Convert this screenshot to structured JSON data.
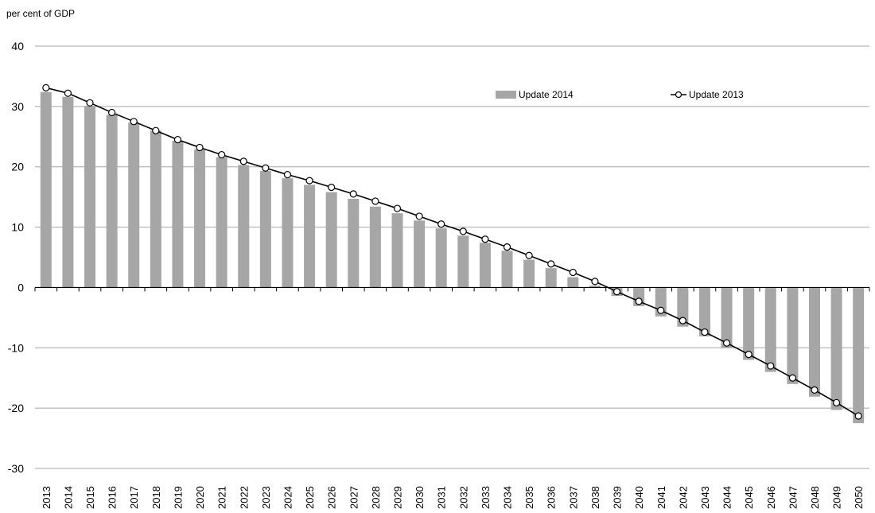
{
  "chart_data": {
    "type": "bar",
    "title": "",
    "ylabel": "per cent of GDP",
    "xlabel": "",
    "ylim": [
      -30,
      40
    ],
    "yticks": [
      40,
      30,
      20,
      10,
      0,
      -10,
      -20,
      -30
    ],
    "grid": true,
    "legend_position": "top-right",
    "categories": [
      "2013",
      "2014",
      "2015",
      "2016",
      "2017",
      "2018",
      "2019",
      "2020",
      "2021",
      "2022",
      "2023",
      "2024",
      "2025",
      "2026",
      "2027",
      "2028",
      "2029",
      "2030",
      "2031",
      "2032",
      "2033",
      "2034",
      "2035",
      "2036",
      "2037",
      "2038",
      "2039",
      "2040",
      "2041",
      "2042",
      "2043",
      "2044",
      "2045",
      "2046",
      "2047",
      "2048",
      "2049",
      "2050"
    ],
    "series": [
      {
        "name": "Update 2014",
        "type": "bar",
        "color": "#a6a6a6",
        "values": [
          32.4,
          31.6,
          30.1,
          28.6,
          27.3,
          26.0,
          24.3,
          22.9,
          21.6,
          20.3,
          19.3,
          18.1,
          17.0,
          15.8,
          14.7,
          13.4,
          12.3,
          11.1,
          9.8,
          8.6,
          7.4,
          6.1,
          4.6,
          3.2,
          1.7,
          0.3,
          -1.4,
          -3.1,
          -4.8,
          -6.5,
          -8.1,
          -10.0,
          -12.0,
          -14.0,
          -16.0,
          -18.1,
          -20.3,
          -22.5
        ]
      },
      {
        "name": "Update 2013",
        "type": "line",
        "color": "#000000",
        "marker": "circle-open",
        "values": [
          33.1,
          32.2,
          30.6,
          29.0,
          27.5,
          26.0,
          24.5,
          23.2,
          22.0,
          20.9,
          19.8,
          18.7,
          17.7,
          16.6,
          15.5,
          14.3,
          13.1,
          11.8,
          10.5,
          9.3,
          8.0,
          6.7,
          5.3,
          3.9,
          2.5,
          1.0,
          -0.7,
          -2.3,
          -3.8,
          -5.5,
          -7.4,
          -9.2,
          -11.1,
          -13.0,
          -15.0,
          -17.0,
          -19.1,
          -21.3
        ]
      }
    ]
  }
}
